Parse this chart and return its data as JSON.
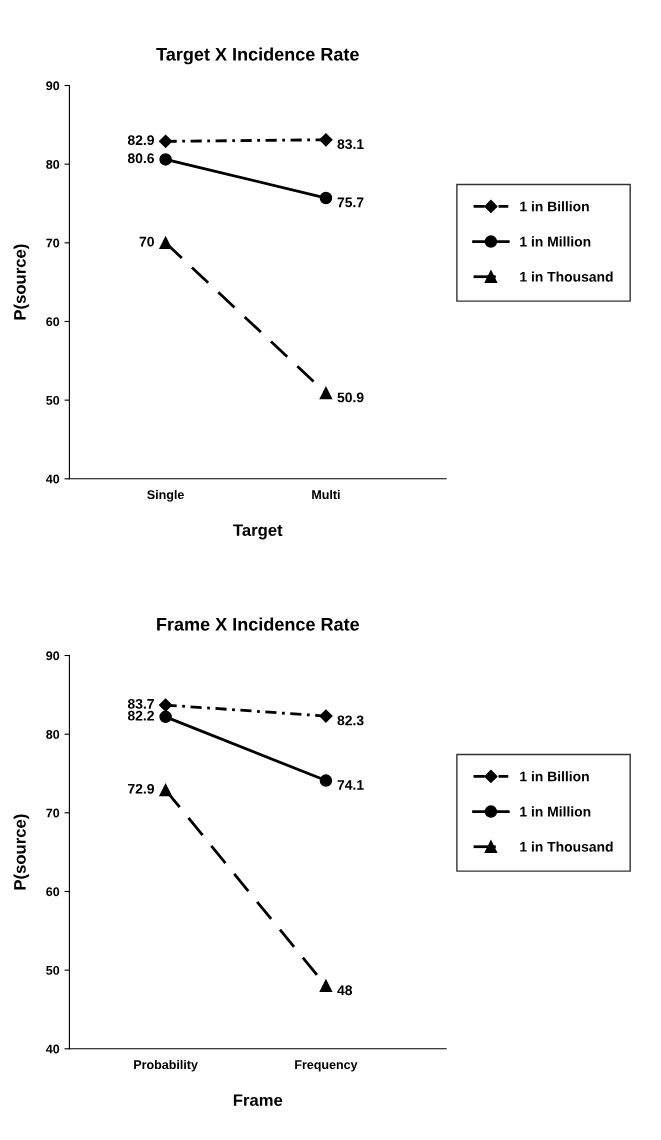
{
  "chart_data": [
    {
      "type": "line",
      "title": "Target X Incidence Rate",
      "xlabel": "Target",
      "ylabel": "P(source)",
      "categories": [
        "Single",
        "Multi"
      ],
      "ylim": [
        40,
        90
      ],
      "yticks": [
        40,
        50,
        60,
        70,
        80,
        90
      ],
      "grid": false,
      "legend": "right",
      "data_labels": true,
      "series": [
        {
          "name": "1 in Billion",
          "color": "#000000",
          "marker": "diamond",
          "line_style": "dotted",
          "values": [
            82.9,
            83.1
          ]
        },
        {
          "name": "1 in Million",
          "color": "#000000",
          "marker": "circle",
          "line_style": "solid",
          "values": [
            80.6,
            75.7
          ]
        },
        {
          "name": "1 in Thousand",
          "color": "#000000",
          "marker": "triangle",
          "line_style": "dashed",
          "values": [
            70,
            50.9
          ]
        }
      ]
    },
    {
      "type": "line",
      "title": "Frame X Incidence Rate",
      "xlabel": "Frame",
      "ylabel": "P(source)",
      "categories": [
        "Probability",
        "Frequency"
      ],
      "ylim": [
        40,
        90
      ],
      "yticks": [
        40,
        50,
        60,
        70,
        80,
        90
      ],
      "grid": false,
      "legend": "right",
      "data_labels": true,
      "series": [
        {
          "name": "1 in Billion",
          "color": "#000000",
          "marker": "diamond",
          "line_style": "dotted",
          "values": [
            83.7,
            82.3
          ]
        },
        {
          "name": "1 in Million",
          "color": "#000000",
          "marker": "circle",
          "line_style": "solid",
          "values": [
            82.2,
            74.1
          ]
        },
        {
          "name": "1 in Thousand",
          "color": "#000000",
          "marker": "triangle",
          "line_style": "dashed",
          "values": [
            72.9,
            48
          ]
        }
      ]
    }
  ]
}
